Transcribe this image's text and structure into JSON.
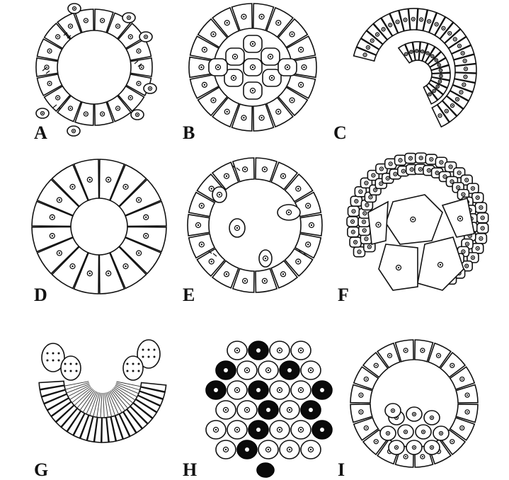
{
  "panels": [
    {
      "id": "A",
      "label": "A"
    },
    {
      "id": "B",
      "label": "B"
    },
    {
      "id": "C",
      "label": "C"
    },
    {
      "id": "D",
      "label": "D"
    },
    {
      "id": "E",
      "label": "E"
    },
    {
      "id": "F",
      "label": "F"
    },
    {
      "id": "G",
      "label": "G"
    },
    {
      "id": "H",
      "label": "H"
    },
    {
      "id": "I",
      "label": "I"
    }
  ]
}
